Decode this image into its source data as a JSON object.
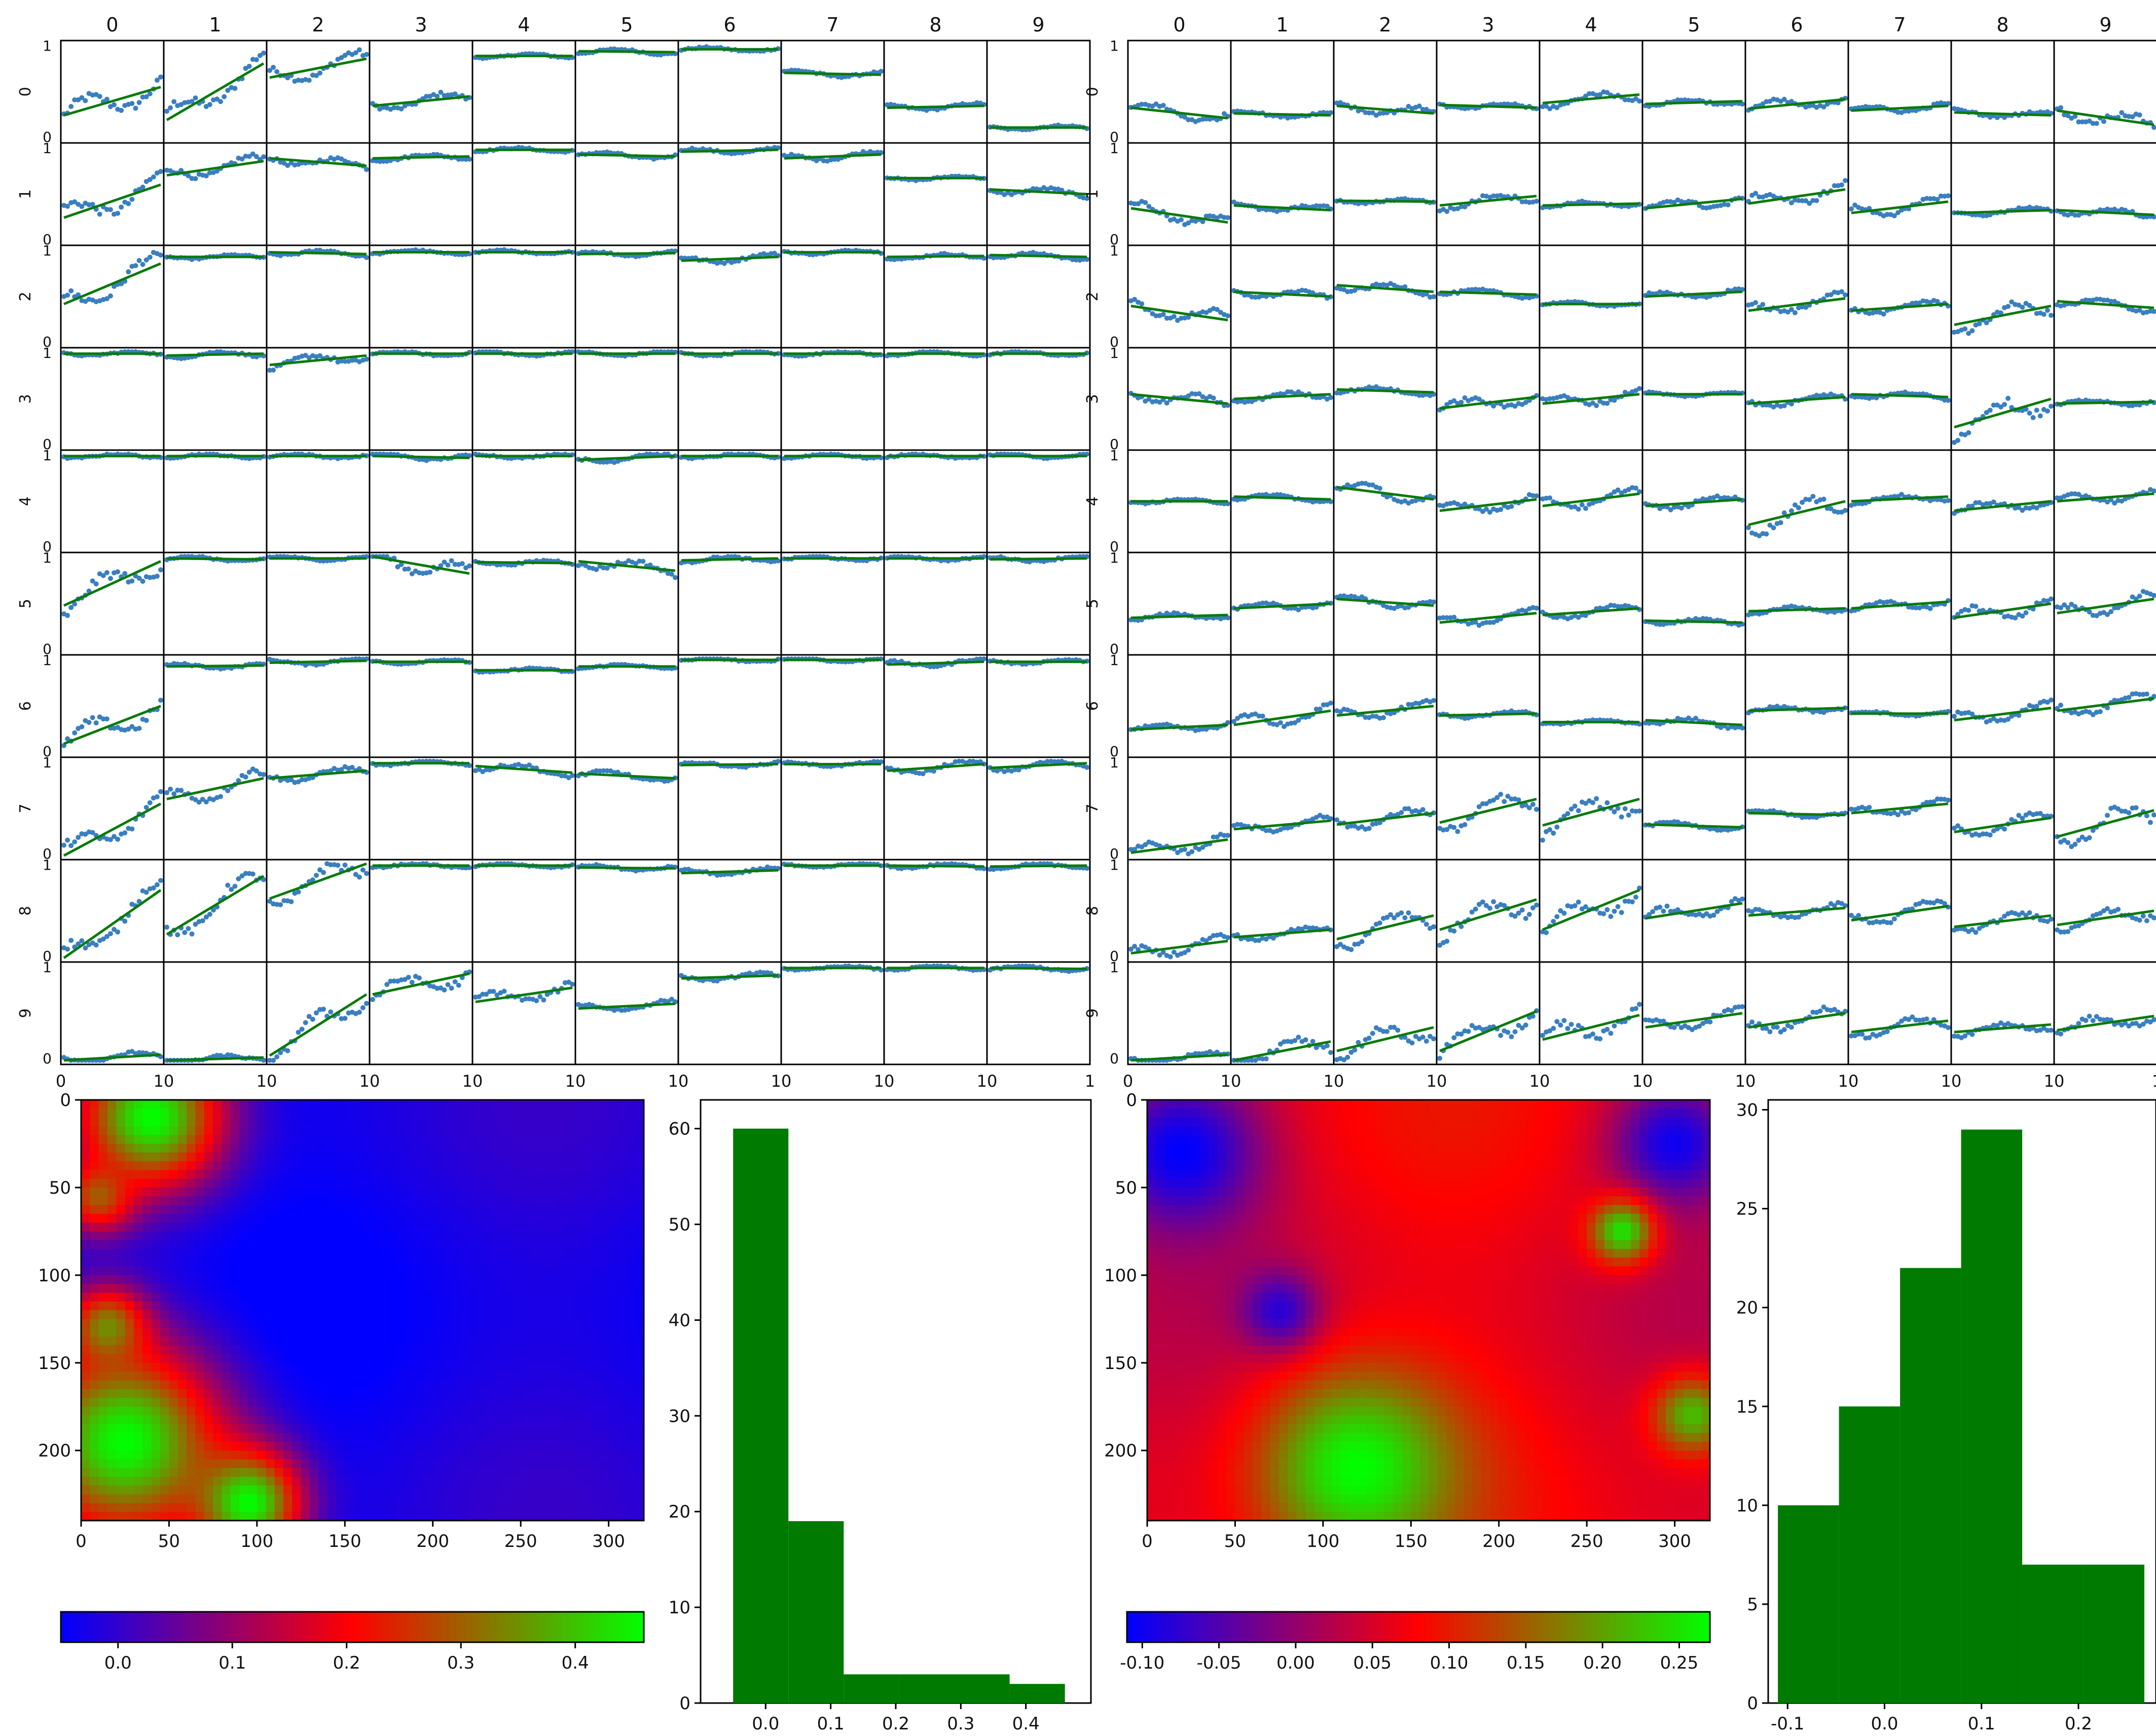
{
  "figure": {
    "colors": {
      "scatter": "#3a7fc0",
      "fit_line": "#0a7a0a",
      "hist_bar": "#007a00",
      "heatmap_low": "#0000ff",
      "heatmap_mid": "#ff0000",
      "heatmap_high": "#00ff00",
      "axis": "#000000",
      "background": "#ffffff"
    }
  },
  "chart_data": [
    {
      "type": "scatter",
      "subtype": "small-multiples-grid",
      "panel": "left",
      "column_headers": [
        "0",
        "1",
        "2",
        "3",
        "4",
        "5",
        "6",
        "7",
        "8",
        "9"
      ],
      "row_labels": [
        "0",
        "1",
        "2",
        "3",
        "4",
        "5",
        "6",
        "7",
        "8",
        "9"
      ],
      "ylim": [
        0,
        1
      ],
      "y_ticks": [
        "0",
        "1"
      ],
      "xlim": [
        0,
        10
      ],
      "x_tick_labels": [
        "0",
        "10",
        "10",
        "10",
        "10",
        "10",
        "10",
        "10",
        "10",
        "10",
        "1"
      ],
      "cell_trend": [
        [
          [
            0.25,
            0.55
          ],
          [
            0.2,
            0.8
          ],
          [
            0.65,
            0.85
          ],
          [
            0.35,
            0.45
          ],
          [
            0.88,
            0.88
          ],
          [
            0.93,
            0.92
          ],
          [
            0.95,
            0.95
          ],
          [
            0.7,
            0.68
          ],
          [
            0.33,
            0.35
          ],
          [
            0.12,
            0.12
          ]
        ],
        [
          [
            0.25,
            0.6
          ],
          [
            0.7,
            0.85
          ],
          [
            0.88,
            0.8
          ],
          [
            0.88,
            0.9
          ],
          [
            0.97,
            0.97
          ],
          [
            0.92,
            0.9
          ],
          [
            0.95,
            0.97
          ],
          [
            0.88,
            0.92
          ],
          [
            0.67,
            0.67
          ],
          [
            0.55,
            0.5
          ]
        ],
        [
          [
            0.42,
            0.85
          ],
          [
            0.92,
            0.92
          ],
          [
            0.97,
            0.95
          ],
          [
            0.97,
            0.97
          ],
          [
            0.97,
            0.97
          ],
          [
            0.95,
            0.96
          ],
          [
            0.88,
            0.92
          ],
          [
            0.97,
            0.97
          ],
          [
            0.92,
            0.93
          ],
          [
            0.94,
            0.92
          ]
        ],
        [
          [
            0.98,
            0.98
          ],
          [
            0.96,
            0.98
          ],
          [
            0.86,
            0.96
          ],
          [
            0.98,
            0.98
          ],
          [
            0.98,
            0.98
          ],
          [
            0.98,
            0.98
          ],
          [
            0.98,
            0.98
          ],
          [
            0.98,
            0.98
          ],
          [
            0.98,
            0.98
          ],
          [
            0.98,
            0.98
          ]
        ],
        [
          [
            0.98,
            0.98
          ],
          [
            0.98,
            0.98
          ],
          [
            0.98,
            0.98
          ],
          [
            0.98,
            0.96
          ],
          [
            0.98,
            0.98
          ],
          [
            0.94,
            0.98
          ],
          [
            0.98,
            0.98
          ],
          [
            0.98,
            0.98
          ],
          [
            0.98,
            0.98
          ],
          [
            0.98,
            0.98
          ]
        ],
        [
          [
            0.48,
            0.95
          ],
          [
            0.98,
            0.97
          ],
          [
            0.98,
            0.98
          ],
          [
            1.0,
            0.82
          ],
          [
            0.94,
            0.93
          ],
          [
            0.95,
            0.85
          ],
          [
            0.96,
            0.98
          ],
          [
            0.98,
            0.98
          ],
          [
            0.98,
            0.98
          ],
          [
            0.97,
            0.98
          ]
        ],
        [
          [
            0.1,
            0.5
          ],
          [
            0.92,
            0.93
          ],
          [
            0.96,
            0.98
          ],
          [
            0.97,
            0.97
          ],
          [
            0.88,
            0.88
          ],
          [
            0.92,
            0.92
          ],
          [
            0.99,
            0.99
          ],
          [
            0.99,
            0.99
          ],
          [
            0.94,
            0.97
          ],
          [
            0.97,
            0.97
          ]
        ],
        [
          [
            0.0,
            0.55
          ],
          [
            0.6,
            0.82
          ],
          [
            0.82,
            0.9
          ],
          [
            0.98,
            0.98
          ],
          [
            0.95,
            0.88
          ],
          [
            0.87,
            0.82
          ],
          [
            0.96,
            0.97
          ],
          [
            0.97,
            0.97
          ],
          [
            0.9,
            0.97
          ],
          [
            0.93,
            0.98
          ]
        ],
        [
          [
            0.0,
            0.72
          ],
          [
            0.25,
            0.87
          ],
          [
            0.63,
            1.0
          ],
          [
            0.98,
            0.98
          ],
          [
            0.98,
            0.98
          ],
          [
            0.96,
            0.95
          ],
          [
            0.9,
            0.93
          ],
          [
            0.98,
            0.98
          ],
          [
            0.98,
            0.97
          ],
          [
            0.97,
            0.98
          ]
        ],
        [
          [
            0.0,
            0.06
          ],
          [
            0.0,
            0.03
          ],
          [
            0.05,
            0.7
          ],
          [
            0.7,
            0.92
          ],
          [
            0.62,
            0.77
          ],
          [
            0.55,
            0.6
          ],
          [
            0.87,
            0.9
          ],
          [
            0.98,
            0.98
          ],
          [
            0.98,
            0.98
          ],
          [
            0.98,
            0.97
          ]
        ]
      ]
    },
    {
      "type": "scatter",
      "subtype": "small-multiples-grid",
      "panel": "right",
      "column_headers": [
        "0",
        "1",
        "2",
        "3",
        "4",
        "5",
        "6",
        "7",
        "8",
        "9"
      ],
      "row_labels": [
        "0",
        "1",
        "2",
        "3",
        "4",
        "5",
        "6",
        "7",
        "8",
        "9"
      ],
      "ylim": [
        0,
        1
      ],
      "y_ticks": [
        "0",
        "1"
      ],
      "xlim": [
        0,
        10
      ],
      "x_tick_labels": [
        "0",
        "10",
        "10",
        "10",
        "10",
        "10",
        "10",
        "10",
        "10",
        "10",
        "1"
      ],
      "cell_trend": [
        [
          [
            0.33,
            0.22
          ],
          [
            0.27,
            0.25
          ],
          [
            0.35,
            0.27
          ],
          [
            0.36,
            0.33
          ],
          [
            0.38,
            0.47
          ],
          [
            0.37,
            0.4
          ],
          [
            0.32,
            0.42
          ],
          [
            0.3,
            0.35
          ],
          [
            0.28,
            0.25
          ],
          [
            0.3,
            0.15
          ]
        ],
        [
          [
            0.35,
            0.2
          ],
          [
            0.38,
            0.33
          ],
          [
            0.43,
            0.42
          ],
          [
            0.38,
            0.48
          ],
          [
            0.38,
            0.4
          ],
          [
            0.35,
            0.45
          ],
          [
            0.4,
            0.55
          ],
          [
            0.3,
            0.42
          ],
          [
            0.3,
            0.33
          ],
          [
            0.33,
            0.28
          ]
        ],
        [
          [
            0.4,
            0.25
          ],
          [
            0.55,
            0.5
          ],
          [
            0.62,
            0.55
          ],
          [
            0.55,
            0.52
          ],
          [
            0.42,
            0.42
          ],
          [
            0.5,
            0.55
          ],
          [
            0.35,
            0.48
          ],
          [
            0.35,
            0.42
          ],
          [
            0.2,
            0.4
          ],
          [
            0.45,
            0.38
          ]
        ],
        [
          [
            0.55,
            0.45
          ],
          [
            0.5,
            0.55
          ],
          [
            0.6,
            0.57
          ],
          [
            0.4,
            0.52
          ],
          [
            0.45,
            0.55
          ],
          [
            0.55,
            0.55
          ],
          [
            0.45,
            0.52
          ],
          [
            0.55,
            0.52
          ],
          [
            0.2,
            0.5
          ],
          [
            0.45,
            0.47
          ]
        ],
        [
          [
            0.5,
            0.5
          ],
          [
            0.55,
            0.52
          ],
          [
            0.65,
            0.52
          ],
          [
            0.4,
            0.52
          ],
          [
            0.45,
            0.58
          ],
          [
            0.45,
            0.52
          ],
          [
            0.25,
            0.5
          ],
          [
            0.5,
            0.55
          ],
          [
            0.4,
            0.5
          ],
          [
            0.5,
            0.58
          ]
        ],
        [
          [
            0.35,
            0.38
          ],
          [
            0.45,
            0.5
          ],
          [
            0.55,
            0.48
          ],
          [
            0.3,
            0.4
          ],
          [
            0.38,
            0.45
          ],
          [
            0.32,
            0.3
          ],
          [
            0.42,
            0.45
          ],
          [
            0.45,
            0.52
          ],
          [
            0.35,
            0.5
          ],
          [
            0.4,
            0.55
          ]
        ],
        [
          [
            0.25,
            0.3
          ],
          [
            0.3,
            0.45
          ],
          [
            0.4,
            0.5
          ],
          [
            0.4,
            0.42
          ],
          [
            0.33,
            0.33
          ],
          [
            0.35,
            0.3
          ],
          [
            0.45,
            0.48
          ],
          [
            0.42,
            0.42
          ],
          [
            0.35,
            0.48
          ],
          [
            0.45,
            0.58
          ]
        ],
        [
          [
            0.03,
            0.17
          ],
          [
            0.28,
            0.37
          ],
          [
            0.33,
            0.45
          ],
          [
            0.35,
            0.6
          ],
          [
            0.32,
            0.6
          ],
          [
            0.33,
            0.3
          ],
          [
            0.45,
            0.43
          ],
          [
            0.45,
            0.55
          ],
          [
            0.25,
            0.4
          ],
          [
            0.2,
            0.48
          ]
        ],
        [
          [
            0.05,
            0.18
          ],
          [
            0.22,
            0.3
          ],
          [
            0.2,
            0.45
          ],
          [
            0.3,
            0.62
          ],
          [
            0.3,
            0.72
          ],
          [
            0.42,
            0.58
          ],
          [
            0.45,
            0.53
          ],
          [
            0.4,
            0.55
          ],
          [
            0.33,
            0.45
          ],
          [
            0.35,
            0.5
          ]
        ],
        [
          [
            0.0,
            0.06
          ],
          [
            0.0,
            0.2
          ],
          [
            0.1,
            0.35
          ],
          [
            0.1,
            0.52
          ],
          [
            0.22,
            0.48
          ],
          [
            0.35,
            0.5
          ],
          [
            0.35,
            0.5
          ],
          [
            0.3,
            0.42
          ],
          [
            0.3,
            0.38
          ],
          [
            0.32,
            0.47
          ]
        ]
      ]
    },
    {
      "type": "heatmap",
      "panel": "left",
      "colormap": [
        "#0000ff",
        "#ff0000",
        "#00ff00"
      ],
      "xlim": [
        0,
        320
      ],
      "ylim": [
        240,
        0
      ],
      "x_ticks": [
        0,
        50,
        100,
        150,
        200,
        250,
        300
      ],
      "y_ticks": [
        0,
        50,
        100,
        150,
        200
      ],
      "colorbar_ticks": [
        "0.0",
        "0.1",
        "0.2",
        "0.3",
        "0.4"
      ],
      "value_range": [
        -0.05,
        0.46
      ],
      "value_note": "blobs: green top-left near (35,15) and bottom-left (0-90, 160-240); red band along them; rest blue",
      "blobs": [
        {
          "x": 40,
          "y": 10,
          "r": 40,
          "v": 0.46
        },
        {
          "x": 10,
          "y": 55,
          "r": 20,
          "v": 0.3
        },
        {
          "x": 25,
          "y": 195,
          "r": 55,
          "v": 0.46
        },
        {
          "x": 95,
          "y": 230,
          "r": 30,
          "v": 0.46
        },
        {
          "x": 15,
          "y": 130,
          "r": 22,
          "v": 0.35
        }
      ]
    },
    {
      "type": "bar",
      "subtype": "histogram",
      "panel": "left",
      "bins": [
        [
          -0.05,
          0.035
        ],
        [
          0.035,
          0.12
        ],
        [
          0.12,
          0.205
        ],
        [
          0.205,
          0.29
        ],
        [
          0.29,
          0.375
        ],
        [
          0.375,
          0.46
        ]
      ],
      "values": [
        60,
        19,
        3,
        3,
        3,
        2
      ],
      "xlim": [
        -0.1,
        0.5
      ],
      "ylim": [
        0,
        63
      ],
      "x_ticks": [
        "0.0",
        "0.1",
        "0.2",
        "0.3",
        "0.4"
      ],
      "y_ticks": [
        "0",
        "10",
        "20",
        "30",
        "40",
        "50",
        "60"
      ]
    },
    {
      "type": "heatmap",
      "panel": "right",
      "colormap": [
        "#0000ff",
        "#ff0000",
        "#00ff00"
      ],
      "xlim": [
        0,
        320
      ],
      "ylim": [
        240,
        0
      ],
      "x_ticks": [
        0,
        50,
        100,
        150,
        200,
        250,
        300
      ],
      "y_ticks": [
        0,
        50,
        100,
        150,
        200
      ],
      "colorbar_ticks": [
        "-0.10",
        "-0.05",
        "0.00",
        "0.05",
        "0.10",
        "0.15",
        "0.20",
        "0.25"
      ],
      "value_range": [
        -0.11,
        0.27
      ],
      "value_note": "green blob bottom-center (70-160, 180-240), green small spots near (270,75) and (310,180); blue at top-left and top-right corners; mostly red elsewhere",
      "blobs": [
        {
          "x": 20,
          "y": 30,
          "r": 45,
          "v": -0.11
        },
        {
          "x": 300,
          "y": 25,
          "r": 35,
          "v": -0.1
        },
        {
          "x": 120,
          "y": 210,
          "r": 55,
          "v": 0.27
        },
        {
          "x": 270,
          "y": 75,
          "r": 18,
          "v": 0.25
        },
        {
          "x": 310,
          "y": 180,
          "r": 22,
          "v": 0.22
        },
        {
          "x": 75,
          "y": 120,
          "r": 22,
          "v": -0.08
        }
      ]
    },
    {
      "type": "bar",
      "subtype": "histogram",
      "panel": "right",
      "bins": [
        [
          -0.11,
          -0.047
        ],
        [
          -0.047,
          0.016
        ],
        [
          0.016,
          0.079
        ],
        [
          0.079,
          0.142
        ],
        [
          0.142,
          0.205
        ],
        [
          0.205,
          0.268
        ]
      ],
      "values": [
        10,
        15,
        22,
        29,
        7,
        7
      ],
      "xlim": [
        -0.12,
        0.28
      ],
      "ylim": [
        0,
        30.5
      ],
      "x_ticks": [
        "-0.1",
        "0.0",
        "0.1",
        "0.2"
      ],
      "y_ticks": [
        "0",
        "5",
        "10",
        "15",
        "20",
        "25",
        "30"
      ]
    }
  ]
}
